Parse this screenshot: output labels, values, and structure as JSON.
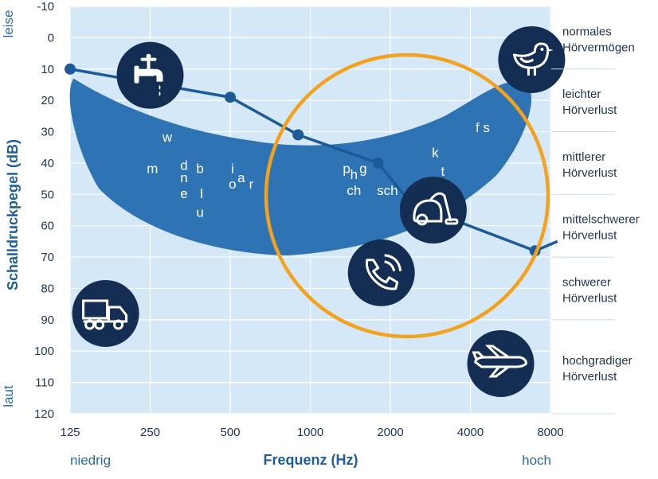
{
  "chart_data": {
    "type": "line",
    "title": "",
    "xlabel": "Frequenz (Hz)",
    "ylabel": "Schalldruckpegel (dB)",
    "x_scale": "log",
    "x_ticks": [
      "125",
      "250",
      "500",
      "1000",
      "2000",
      "4000",
      "8000"
    ],
    "y_ticks": [
      "-10",
      "0",
      "10",
      "20",
      "30",
      "40",
      "50",
      "60",
      "70",
      "80",
      "90",
      "100",
      "110",
      "120"
    ],
    "ylim": [
      -10,
      120
    ],
    "y_inverted": true,
    "grid": true,
    "x_end_labels": {
      "low": "niedrig",
      "high": "hoch"
    },
    "y_end_labels": {
      "top": "leise",
      "bottom": "laut"
    },
    "series": [
      {
        "x": [
          125,
          500,
          900,
          1800,
          2400,
          7000,
          8500
        ],
        "y": [
          10,
          19,
          31,
          40,
          53,
          68,
          65
        ]
      }
    ],
    "speech_banana_phonemes": [
      {
        "text": "w",
        "x": 290,
        "y": 32
      },
      {
        "text": "m",
        "x": 255,
        "y": 42
      },
      {
        "text": "d",
        "x": 335,
        "y": 41
      },
      {
        "text": "n",
        "x": 335,
        "y": 45
      },
      {
        "text": "e",
        "x": 335,
        "y": 50
      },
      {
        "text": "b",
        "x": 385,
        "y": 42
      },
      {
        "text": "l",
        "x": 390,
        "y": 50
      },
      {
        "text": "u",
        "x": 385,
        "y": 56
      },
      {
        "text": "i",
        "x": 510,
        "y": 42
      },
      {
        "text": "o",
        "x": 510,
        "y": 47
      },
      {
        "text": "a",
        "x": 550,
        "y": 45
      },
      {
        "text": "r",
        "x": 600,
        "y": 47
      },
      {
        "text": "p",
        "x": 1370,
        "y": 42
      },
      {
        "text": "h",
        "x": 1460,
        "y": 44
      },
      {
        "text": "g",
        "x": 1580,
        "y": 42
      },
      {
        "text": "ch",
        "x": 1460,
        "y": 49
      },
      {
        "text": "sch",
        "x": 1950,
        "y": 49
      },
      {
        "text": "k",
        "x": 2950,
        "y": 37
      },
      {
        "text": "t",
        "x": 3150,
        "y": 43
      },
      {
        "text": "f s",
        "x": 4450,
        "y": 29
      }
    ],
    "hearing_bands": [
      {
        "lines": [
          "normales",
          "Hörvermögen"
        ],
        "from": -10,
        "to": 10
      },
      {
        "lines": [
          "leichter",
          "Hörverlust"
        ],
        "from": 10,
        "to": 30
      },
      {
        "lines": [
          "mittlerer",
          "Hörverlust"
        ],
        "from": 30,
        "to": 50
      },
      {
        "lines": [
          "mittelschwerer",
          "Hörverlust"
        ],
        "from": 50,
        "to": 70
      },
      {
        "lines": [
          "schwerer",
          "Hörverlust"
        ],
        "from": 70,
        "to": 90
      },
      {
        "lines": [
          "hochgradiger",
          "Hörverlust"
        ],
        "from": 90,
        "to": 120
      }
    ],
    "icons": [
      {
        "name": "faucet-icon",
        "x": 250,
        "y": 12
      },
      {
        "name": "bird-icon",
        "x": 6800,
        "y": 7
      },
      {
        "name": "vacuum-cleaner-icon",
        "x": 2900,
        "y": 55
      },
      {
        "name": "phone-icon",
        "x": 1850,
        "y": 75
      },
      {
        "name": "truck-icon",
        "x": 170,
        "y": 88
      },
      {
        "name": "airplane-icon",
        "x": 5200,
        "y": 104
      }
    ],
    "colors": {
      "plot_bg": "#d4e8f8",
      "banana": "#2e74b5",
      "line": "#1d5a99",
      "circle": "#f2a21c",
      "icon_bg": "#142d52",
      "text": "#1f3552",
      "accent": "#1f5e95"
    }
  }
}
